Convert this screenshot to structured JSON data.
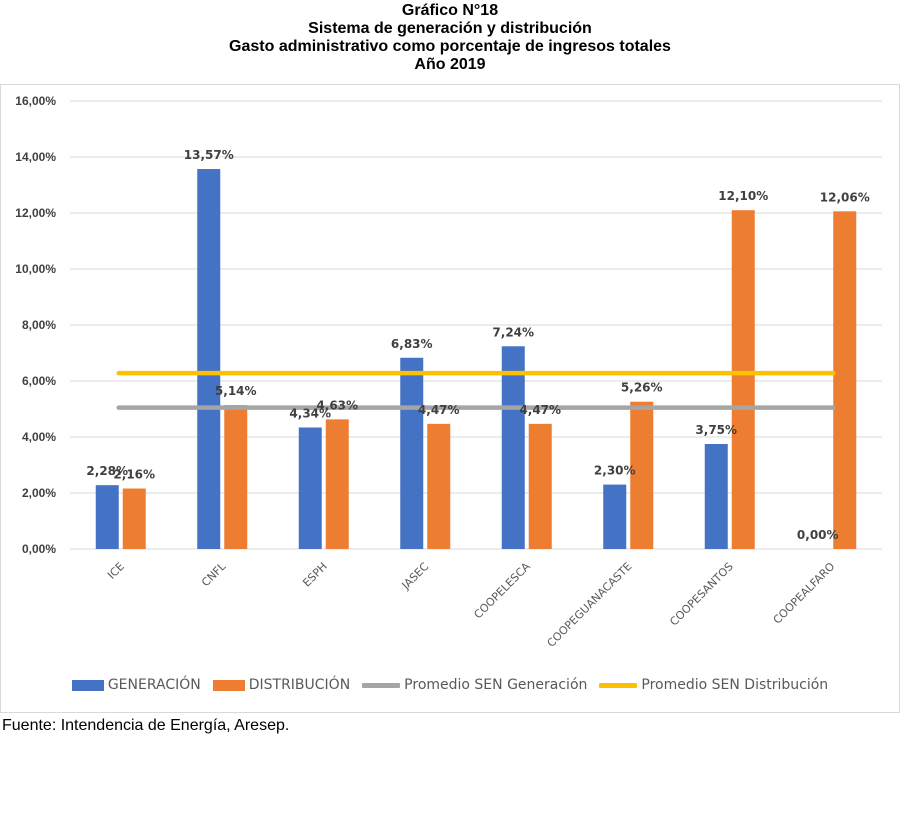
{
  "title_lines": [
    "Gráfico N°18",
    "Sistema de generación y distribución",
    "Gasto administrativo como porcentaje de ingresos totales",
    "Año 2019"
  ],
  "source": "Fuente: Intendencia de Energía, Aresep.",
  "colors": {
    "generacion": "#4472C4",
    "distribucion": "#ED7D31",
    "promedio_generacion": "#A5A5A5",
    "promedio_distribucion": "#FFC000"
  },
  "chart_data": {
    "type": "bar",
    "categories": [
      "ICE",
      "CNFL",
      "ESPH",
      "JASEC",
      "COOPELESCA",
      "COOPEGUANACASTE",
      "COOPESANTOS",
      "COOPEALFARO"
    ],
    "series": [
      {
        "name": "GENERACIÓN",
        "values": [
          2.28,
          13.57,
          4.34,
          6.83,
          7.24,
          2.3,
          3.75,
          0.0
        ],
        "labels": [
          "2,28%",
          "13,57%",
          "4,34%",
          "6,83%",
          "7,24%",
          "2,30%",
          "3,75%",
          "0,00%"
        ]
      },
      {
        "name": "DISTRIBUCIÓN",
        "values": [
          2.16,
          5.14,
          4.63,
          4.47,
          4.47,
          5.26,
          12.1,
          12.06
        ],
        "labels": [
          "2,16%",
          "5,14%",
          "4,63%",
          "4,47%",
          "4,47%",
          "5,26%",
          "12,10%",
          "12,06%"
        ]
      }
    ],
    "reference_lines": [
      {
        "name": "Promedio SEN Generación",
        "value": 5.05
      },
      {
        "name": "Promedio SEN Distribución",
        "value": 6.28
      }
    ],
    "ylim": [
      0,
      16
    ],
    "yticks": [
      0,
      2,
      4,
      6,
      8,
      10,
      12,
      14,
      16
    ],
    "ytick_labels": [
      "0,00%",
      "2,00%",
      "4,00%",
      "6,00%",
      "8,00%",
      "10,00%",
      "12,00%",
      "14,00%",
      "16,00%"
    ],
    "grid": true,
    "legend_position": "bottom"
  }
}
